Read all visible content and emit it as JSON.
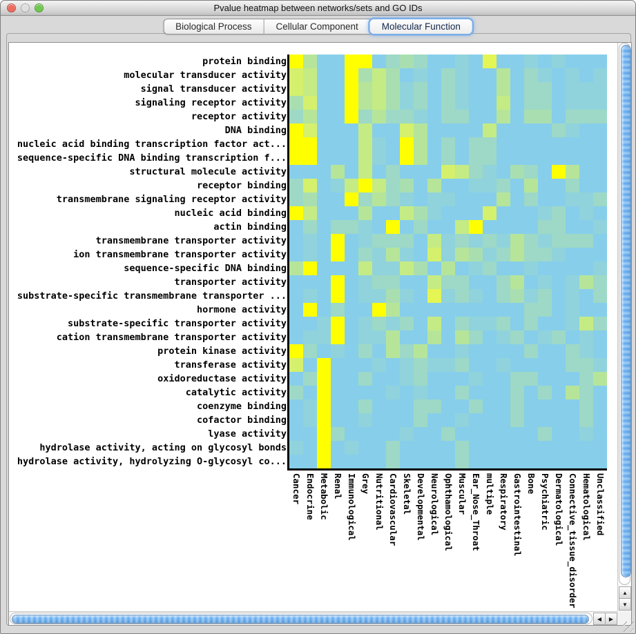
{
  "window": {
    "title": "Pvalue heatmap between networks/sets and GO IDs",
    "traffic_lights": [
      {
        "name": "close",
        "color": "#ED6B5F"
      },
      {
        "name": "minimize",
        "color": "#DFDFDF"
      },
      {
        "name": "zoom",
        "color": "#70C94F"
      }
    ]
  },
  "tabs": [
    {
      "label": "Biological Process",
      "selected": false
    },
    {
      "label": "Cellular Component",
      "selected": false
    },
    {
      "label": "Molecular Function",
      "selected": true
    }
  ],
  "heatmap": {
    "type": "heatmap",
    "rows": [
      "protein binding",
      "molecular transducer activity",
      "signal transducer activity",
      "signaling receptor activity",
      "receptor activity",
      "DNA binding",
      "nucleic acid binding transcription factor act...",
      "sequence-specific DNA binding transcription f...",
      "structural molecule activity",
      "receptor binding",
      "transmembrane signaling receptor activity",
      "nucleic acid binding",
      "actin binding",
      "transmembrane transporter activity",
      "ion transmembrane transporter activity",
      "sequence-specific DNA binding",
      "transporter activity",
      "substrate-specific transmembrane transporter ...",
      "hormone activity",
      "substrate-specific transporter activity",
      "cation transmembrane transporter activity",
      "protein kinase activity",
      "transferase activity",
      "oxidoreductase activity",
      "catalytic activity",
      "coenzyme binding",
      "cofactor binding",
      "lyase activity",
      "hydrolase activity, acting on glycosyl bonds",
      "hydrolase activity, hydrolyzing O-glycosyl co..."
    ],
    "columns": [
      "Cancer",
      "Endocrine",
      "Metabolic",
      "Renal",
      "Immunological",
      "Grey",
      "Nutritional",
      "Cardiovascular",
      "Skeletal",
      "Developmental",
      "Neurological",
      "Ophthamological",
      "Muscular",
      "Ear_Nose_Throat",
      "multiple",
      "Respiratory",
      "Gastrointestinal",
      "Bone",
      "Psychiatric",
      "Dermatological",
      "Connective_tissue_disorder",
      "Hematological",
      "Unclassified"
    ],
    "palette": {
      "low_color": "#87CEEB",
      "high_color": "#FFFF00",
      "levels": [
        "#87CEEB",
        "#90D3DC",
        "#9DD9C6",
        "#A9DFB0",
        "#B6E59A",
        "#C5EB84",
        "#D4F06C",
        "#E4F554",
        "#F1FA2A",
        "#FFFF00"
      ]
    },
    "cells": [
      "94009902320010700101000",
      "65009353010210040210101",
      "65009453120210040220111",
      "36009453120210050220111",
      "24009242210220040330222",
      "96000500640000500002100",
      "99000510940202200000000",
      "99000510940202200000000",
      "00040502000652103209400",
      "26015952304001120400200",
      "23009242101100040200112",
      "95000400531000600012010",
      "02022109020059000022001",
      "01090122205121214212220",
      "01090214106143124221000",
      "49000511530401200100001",
      "00090122005220024010142",
      "01090113107121023120102",
      "09020094000000000220100",
      "00190121205021120200152",
      "01190114004042012012010",
      "92010204240010000200210",
      "60900010121120010000221",
      "02900200120001002200024",
      "20900001010020002020420",
      "01900200022002002000020",
      "01900100020010002000020",
      "00920000100200000020010",
      "10901002000020000000000",
      "00900002000020000000000"
    ]
  },
  "scrollbars": {
    "up_arrow": "▲",
    "down_arrow": "▼",
    "left_arrow": "◀",
    "right_arrow": "▶"
  }
}
